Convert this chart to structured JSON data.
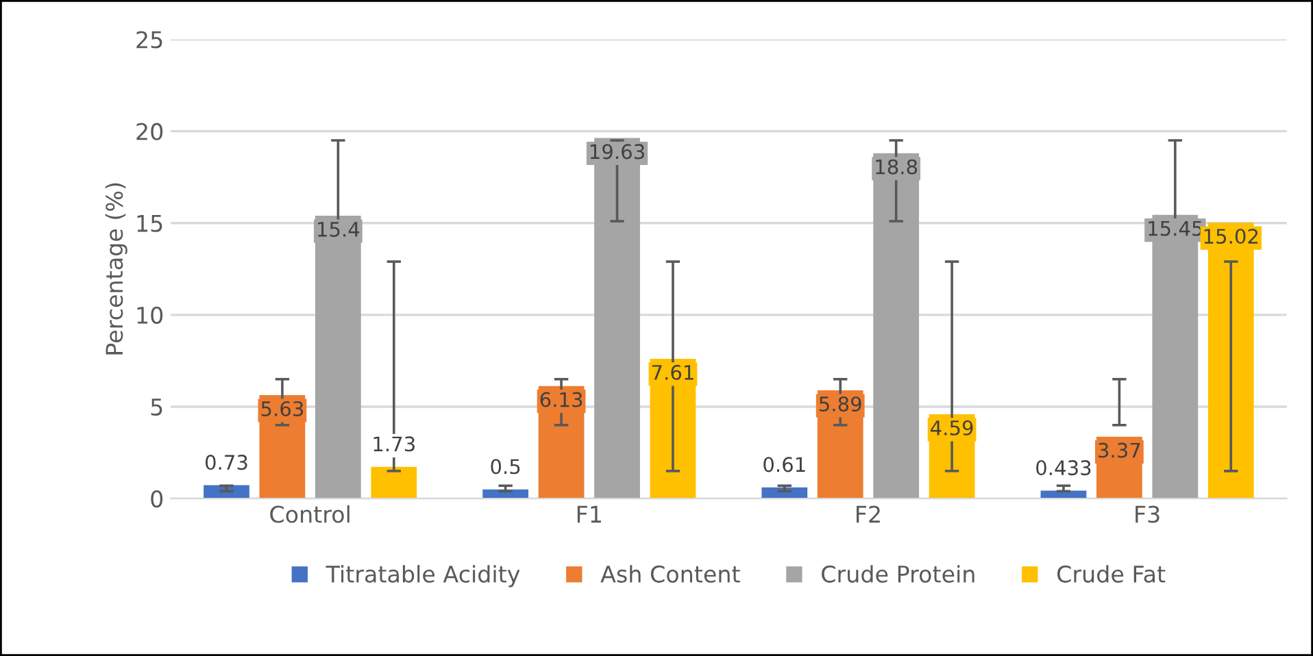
{
  "chart_data": {
    "type": "bar",
    "ylabel": "Percentage (%)",
    "categories": [
      "Control",
      "F1",
      "F2",
      "F3"
    ],
    "series": [
      {
        "name": "Titratable Acidity",
        "color": "#4472c4",
        "values": [
          0.73,
          0.5,
          0.61,
          0.433
        ],
        "errors": [
          [
            0.4,
            0.7
          ],
          [
            0.4,
            0.7
          ],
          [
            0.4,
            0.7
          ],
          [
            0.4,
            0.7
          ]
        ]
      },
      {
        "name": "Ash Content",
        "color": "#ed7d31",
        "values": [
          5.63,
          6.13,
          5.89,
          3.37
        ],
        "errors": [
          [
            4.0,
            6.5
          ],
          [
            4.0,
            6.5
          ],
          [
            4.0,
            6.5
          ],
          [
            4.0,
            6.5
          ]
        ]
      },
      {
        "name": "Crude Protein",
        "color": "#a5a5a5",
        "values": [
          15.4,
          19.63,
          18.8,
          15.45
        ],
        "errors": [
          [
            15.1,
            19.5
          ],
          [
            15.1,
            19.5
          ],
          [
            15.1,
            19.5
          ],
          [
            15.1,
            19.5
          ]
        ]
      },
      {
        "name": "Crude Fat",
        "color": "#ffc000",
        "values": [
          1.73,
          7.61,
          4.59,
          15.02
        ],
        "errors": [
          [
            1.5,
            12.9
          ],
          [
            1.5,
            12.9
          ],
          [
            1.5,
            12.9
          ],
          [
            1.5,
            12.9
          ]
        ]
      }
    ],
    "ylim": [
      0,
      25
    ],
    "yticks": [
      0,
      5,
      10,
      15,
      20,
      25
    ],
    "grid": "y",
    "legend": "bottom",
    "data_labels": true
  }
}
